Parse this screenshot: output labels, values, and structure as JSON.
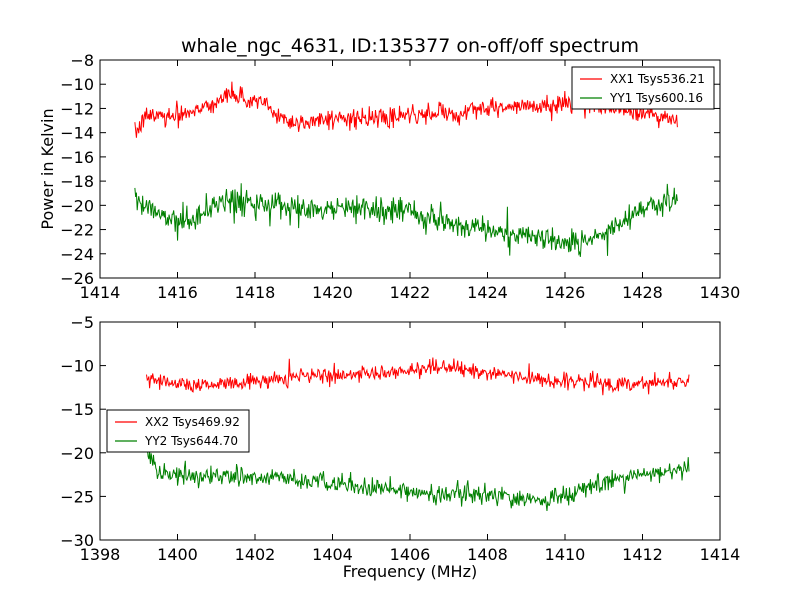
{
  "chart_data": [
    {
      "type": "line",
      "title": "whale_ngc_4631, ID:135377 on-off/off spectrum",
      "xlabel": "",
      "ylabel": "Power in Kelvin",
      "xlim": [
        1414,
        1430
      ],
      "ylim": [
        -26,
        -8
      ],
      "xticks": [
        1414,
        1416,
        1418,
        1420,
        1422,
        1424,
        1426,
        1428,
        1430
      ],
      "yticks": [
        -26,
        -24,
        -22,
        -20,
        -18,
        -16,
        -14,
        -12,
        -10,
        -8
      ],
      "legend_position": "upper right",
      "series": [
        {
          "name": "XX1 Tsys536.21",
          "color": "#ff0000",
          "x_range": [
            1414.9,
            1428.9
          ],
          "trend_x": [
            1414.9,
            1415.2,
            1416,
            1416.8,
            1417.3,
            1417.8,
            1418.2,
            1418.6,
            1419,
            1420,
            1421,
            1422,
            1423,
            1424,
            1425,
            1426,
            1426.5,
            1427,
            1427.5,
            1428,
            1428.5,
            1428.9
          ],
          "trend_y": [
            -14.2,
            -12.6,
            -12.5,
            -11.8,
            -10.8,
            -11.3,
            -11.5,
            -12.6,
            -13.2,
            -12.8,
            -12.9,
            -12.6,
            -12.4,
            -12.0,
            -11.9,
            -11.6,
            -11.5,
            -11.8,
            -12.1,
            -12.4,
            -12.6,
            -13.0
          ],
          "noise": 0.7
        },
        {
          "name": "YY1 Tsys600.16",
          "color": "#008000",
          "x_range": [
            1414.9,
            1428.9
          ],
          "trend_x": [
            1414.9,
            1415.5,
            1416,
            1416.5,
            1417.2,
            1418,
            1419,
            1420,
            1420.6,
            1421,
            1422,
            1423,
            1424,
            1425,
            1426,
            1426.5,
            1427,
            1427.5,
            1428,
            1428.5,
            1428.9
          ],
          "trend_y": [
            -19.6,
            -20.6,
            -21.4,
            -21.0,
            -19.5,
            -19.8,
            -20.4,
            -20.4,
            -20.1,
            -20.3,
            -20.6,
            -21.4,
            -22.0,
            -22.5,
            -23.0,
            -23.0,
            -22.3,
            -21.2,
            -20.4,
            -19.9,
            -19.5
          ],
          "noise": 0.9
        }
      ]
    },
    {
      "type": "line",
      "title": "",
      "xlabel": "Frequency (MHz)",
      "ylabel": "",
      "xlim": [
        1398,
        1414
      ],
      "ylim": [
        -30,
        -5
      ],
      "xticks": [
        1398,
        1400,
        1402,
        1404,
        1406,
        1408,
        1410,
        1412,
        1414
      ],
      "yticks": [
        -30,
        -25,
        -20,
        -15,
        -10,
        -5
      ],
      "legend_position": "center left",
      "series": [
        {
          "name": "XX2 Tsys469.92",
          "color": "#ff0000",
          "x_range": [
            1399.2,
            1413.2
          ],
          "trend_x": [
            1399.2,
            1400,
            1401,
            1402,
            1403,
            1404,
            1405,
            1406,
            1406.5,
            1407,
            1407.5,
            1408,
            1409,
            1410,
            1411,
            1412,
            1413.2
          ],
          "trend_y": [
            -11.5,
            -12.0,
            -12.2,
            -11.8,
            -11.3,
            -11.1,
            -11.0,
            -10.6,
            -10.3,
            -10.2,
            -10.4,
            -10.8,
            -11.4,
            -11.8,
            -12.1,
            -12.0,
            -11.7
          ],
          "noise": 0.8
        },
        {
          "name": "YY2 Tsys644.70",
          "color": "#008000",
          "x_range": [
            1399.2,
            1413.2
          ],
          "trend_x": [
            1399.2,
            1399.5,
            1400,
            1401,
            1402,
            1403,
            1404,
            1405,
            1406,
            1407,
            1408,
            1409,
            1409.5,
            1410,
            1411,
            1412,
            1413.2
          ],
          "trend_y": [
            -19.5,
            -22.0,
            -22.6,
            -22.8,
            -22.8,
            -23.1,
            -23.6,
            -24.0,
            -24.5,
            -24.6,
            -25.0,
            -25.3,
            -25.5,
            -24.8,
            -23.5,
            -22.5,
            -21.8
          ],
          "noise": 1.0
        }
      ]
    }
  ]
}
